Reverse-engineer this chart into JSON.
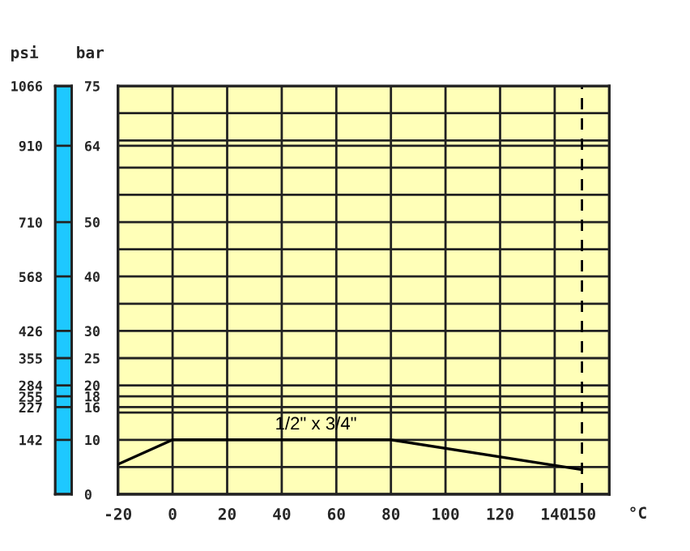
{
  "chart_data": {
    "type": "line",
    "xlabel": "°C",
    "ylabel": "bar",
    "y2label": "psi",
    "x": [
      -20,
      0,
      80,
      150
    ],
    "series": [
      {
        "name": "1/2\" x 3/4\"",
        "color": "#000000",
        "values": [
          5.5,
          10,
          10,
          4.5
        ]
      }
    ],
    "xlim": [
      -20,
      160
    ],
    "xticks": [
      -20,
      0,
      20,
      40,
      60,
      80,
      100,
      120,
      140,
      150
    ],
    "ylim": [
      0,
      75
    ],
    "yticks": [
      0,
      {
        "value": 5,
        "label": null
      },
      10,
      {
        "value": 15,
        "label": null
      },
      16,
      18,
      20,
      25,
      30,
      {
        "value": 35,
        "label": null
      },
      40,
      {
        "value": 45,
        "label": null
      },
      50,
      {
        "value": 55,
        "label": null
      },
      {
        "value": 60,
        "label": null
      },
      64,
      {
        "value": 65,
        "label": null
      },
      {
        "value": 70,
        "label": null
      },
      75
    ],
    "y2lim": [
      0,
      1066
    ],
    "y2ticks": [
      142,
      227,
      255,
      284,
      355,
      426,
      568,
      710,
      910,
      1066
    ],
    "ref_lines": [
      {
        "axis": "x",
        "value": 150,
        "label": null,
        "color": "#000000",
        "line_style": "dashed"
      }
    ],
    "grid": true,
    "marker": "none",
    "line_style": "solid"
  }
}
